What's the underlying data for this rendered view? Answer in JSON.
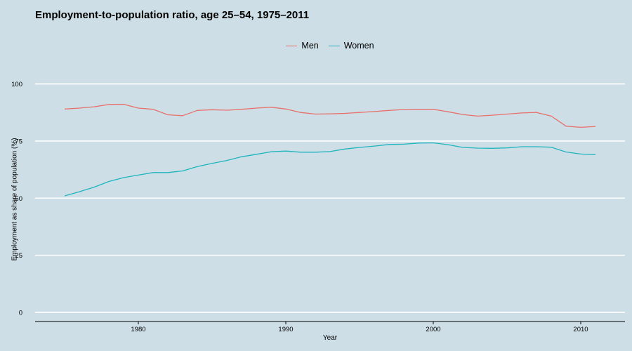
{
  "chart_data": {
    "type": "line",
    "title": "Employment-to-population ratio, age 25–54, 1975–2011",
    "xlabel": "Year",
    "ylabel": "Employment as share of population (%)",
    "xlim": [
      1973,
      2013
    ],
    "ylim": [
      -4,
      106
    ],
    "x_ticks": [
      1980,
      1990,
      2000,
      2010
    ],
    "y_ticks": [
      0,
      25,
      50,
      75,
      100
    ],
    "grid": true,
    "legend_position": "top",
    "x": [
      1975,
      1976,
      1977,
      1978,
      1979,
      1980,
      1981,
      1982,
      1983,
      1984,
      1985,
      1986,
      1987,
      1988,
      1989,
      1990,
      1991,
      1992,
      1993,
      1994,
      1995,
      1996,
      1997,
      1998,
      1999,
      2000,
      2001,
      2002,
      2003,
      2004,
      2005,
      2006,
      2007,
      2008,
      2009,
      2010,
      2011
    ],
    "series": [
      {
        "name": "Men",
        "color": "#e8706a",
        "values": [
          89.0,
          89.4,
          90.0,
          91.0,
          91.1,
          89.4,
          88.9,
          86.5,
          86.1,
          88.4,
          88.7,
          88.5,
          88.9,
          89.4,
          89.8,
          89.0,
          87.5,
          86.8,
          86.9,
          87.1,
          87.5,
          87.9,
          88.4,
          88.8,
          88.9,
          88.9,
          87.8,
          86.6,
          85.9,
          86.3,
          86.8,
          87.3,
          87.5,
          85.9,
          81.5,
          81.0,
          81.4
        ]
      },
      {
        "name": "Women",
        "color": "#1fb5bd",
        "values": [
          51.0,
          52.8,
          54.8,
          57.3,
          59.0,
          60.1,
          61.2,
          61.2,
          61.9,
          63.8,
          65.2,
          66.5,
          68.1,
          69.2,
          70.3,
          70.6,
          70.1,
          70.1,
          70.4,
          71.5,
          72.2,
          72.8,
          73.5,
          73.6,
          74.1,
          74.2,
          73.4,
          72.2,
          71.9,
          71.8,
          72.0,
          72.5,
          72.5,
          72.3,
          70.2,
          69.3,
          69.0
        ]
      }
    ]
  }
}
